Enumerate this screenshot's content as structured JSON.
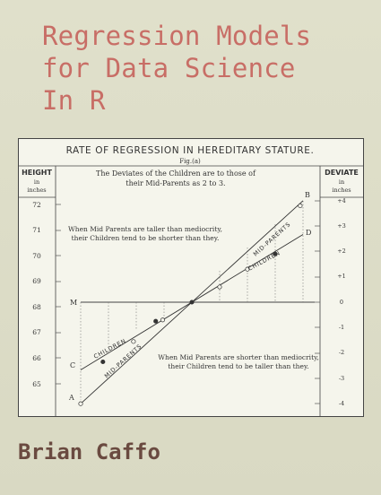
{
  "cover": {
    "title_lines": [
      "Regression Models",
      "for Data Science",
      "In R"
    ],
    "author": "Brian Caffo",
    "colors": {
      "background": "#dcdcc6",
      "title": "#c86e66",
      "author": "#6a4a40",
      "plate": "#f5f5ec",
      "ink": "#333333"
    }
  },
  "figure": {
    "title": "RATE OF REGRESSION IN HEREDITARY STATURE.",
    "fig_label": "Fig.(a)",
    "left_header": {
      "line1": "HEIGHT",
      "line2": "in",
      "line3": "inches"
    },
    "right_header": {
      "line1": "DEVIATE",
      "line2": "in",
      "line3": "inches"
    },
    "caption": {
      "line1": "The Deviates of the Children are to those of",
      "line2": "their Mid-Parents as 2 to 3."
    },
    "note_top": {
      "line1": "When Mid Parents are taller than mediocrity,",
      "line2": "their Children tend to be shorter than they."
    },
    "note_bottom": {
      "line1": "When Mid Parents are shorter than mediocrity,",
      "line2": "their Children tend to be taller than they."
    },
    "line_labels": {
      "children_upper": "CHILDREN",
      "midparents_upper": "MID-PARENTS",
      "children_lower": "CHILDREN",
      "midparents_lower": "MID-PARENTS"
    },
    "letters": {
      "A": "A",
      "B": "B",
      "C": "C",
      "D": "D",
      "M": "M"
    }
  },
  "chart_data": {
    "type": "line",
    "left_ticks": [
      "72",
      "71",
      "70",
      "69",
      "68",
      "67",
      "66",
      "65"
    ],
    "right_ticks": [
      "+4",
      "+3",
      "+2",
      "+1",
      "0",
      "-1",
      "-2",
      "-3",
      "-4"
    ],
    "series": [
      {
        "name": "MID-PARENTS",
        "x": [
          -4,
          4
        ],
        "y": [
          -4,
          4
        ]
      },
      {
        "name": "CHILDREN",
        "x": [
          -4,
          4
        ],
        "y": [
          -2.667,
          2.667
        ]
      }
    ],
    "mediocrity_value": 68.25
  }
}
